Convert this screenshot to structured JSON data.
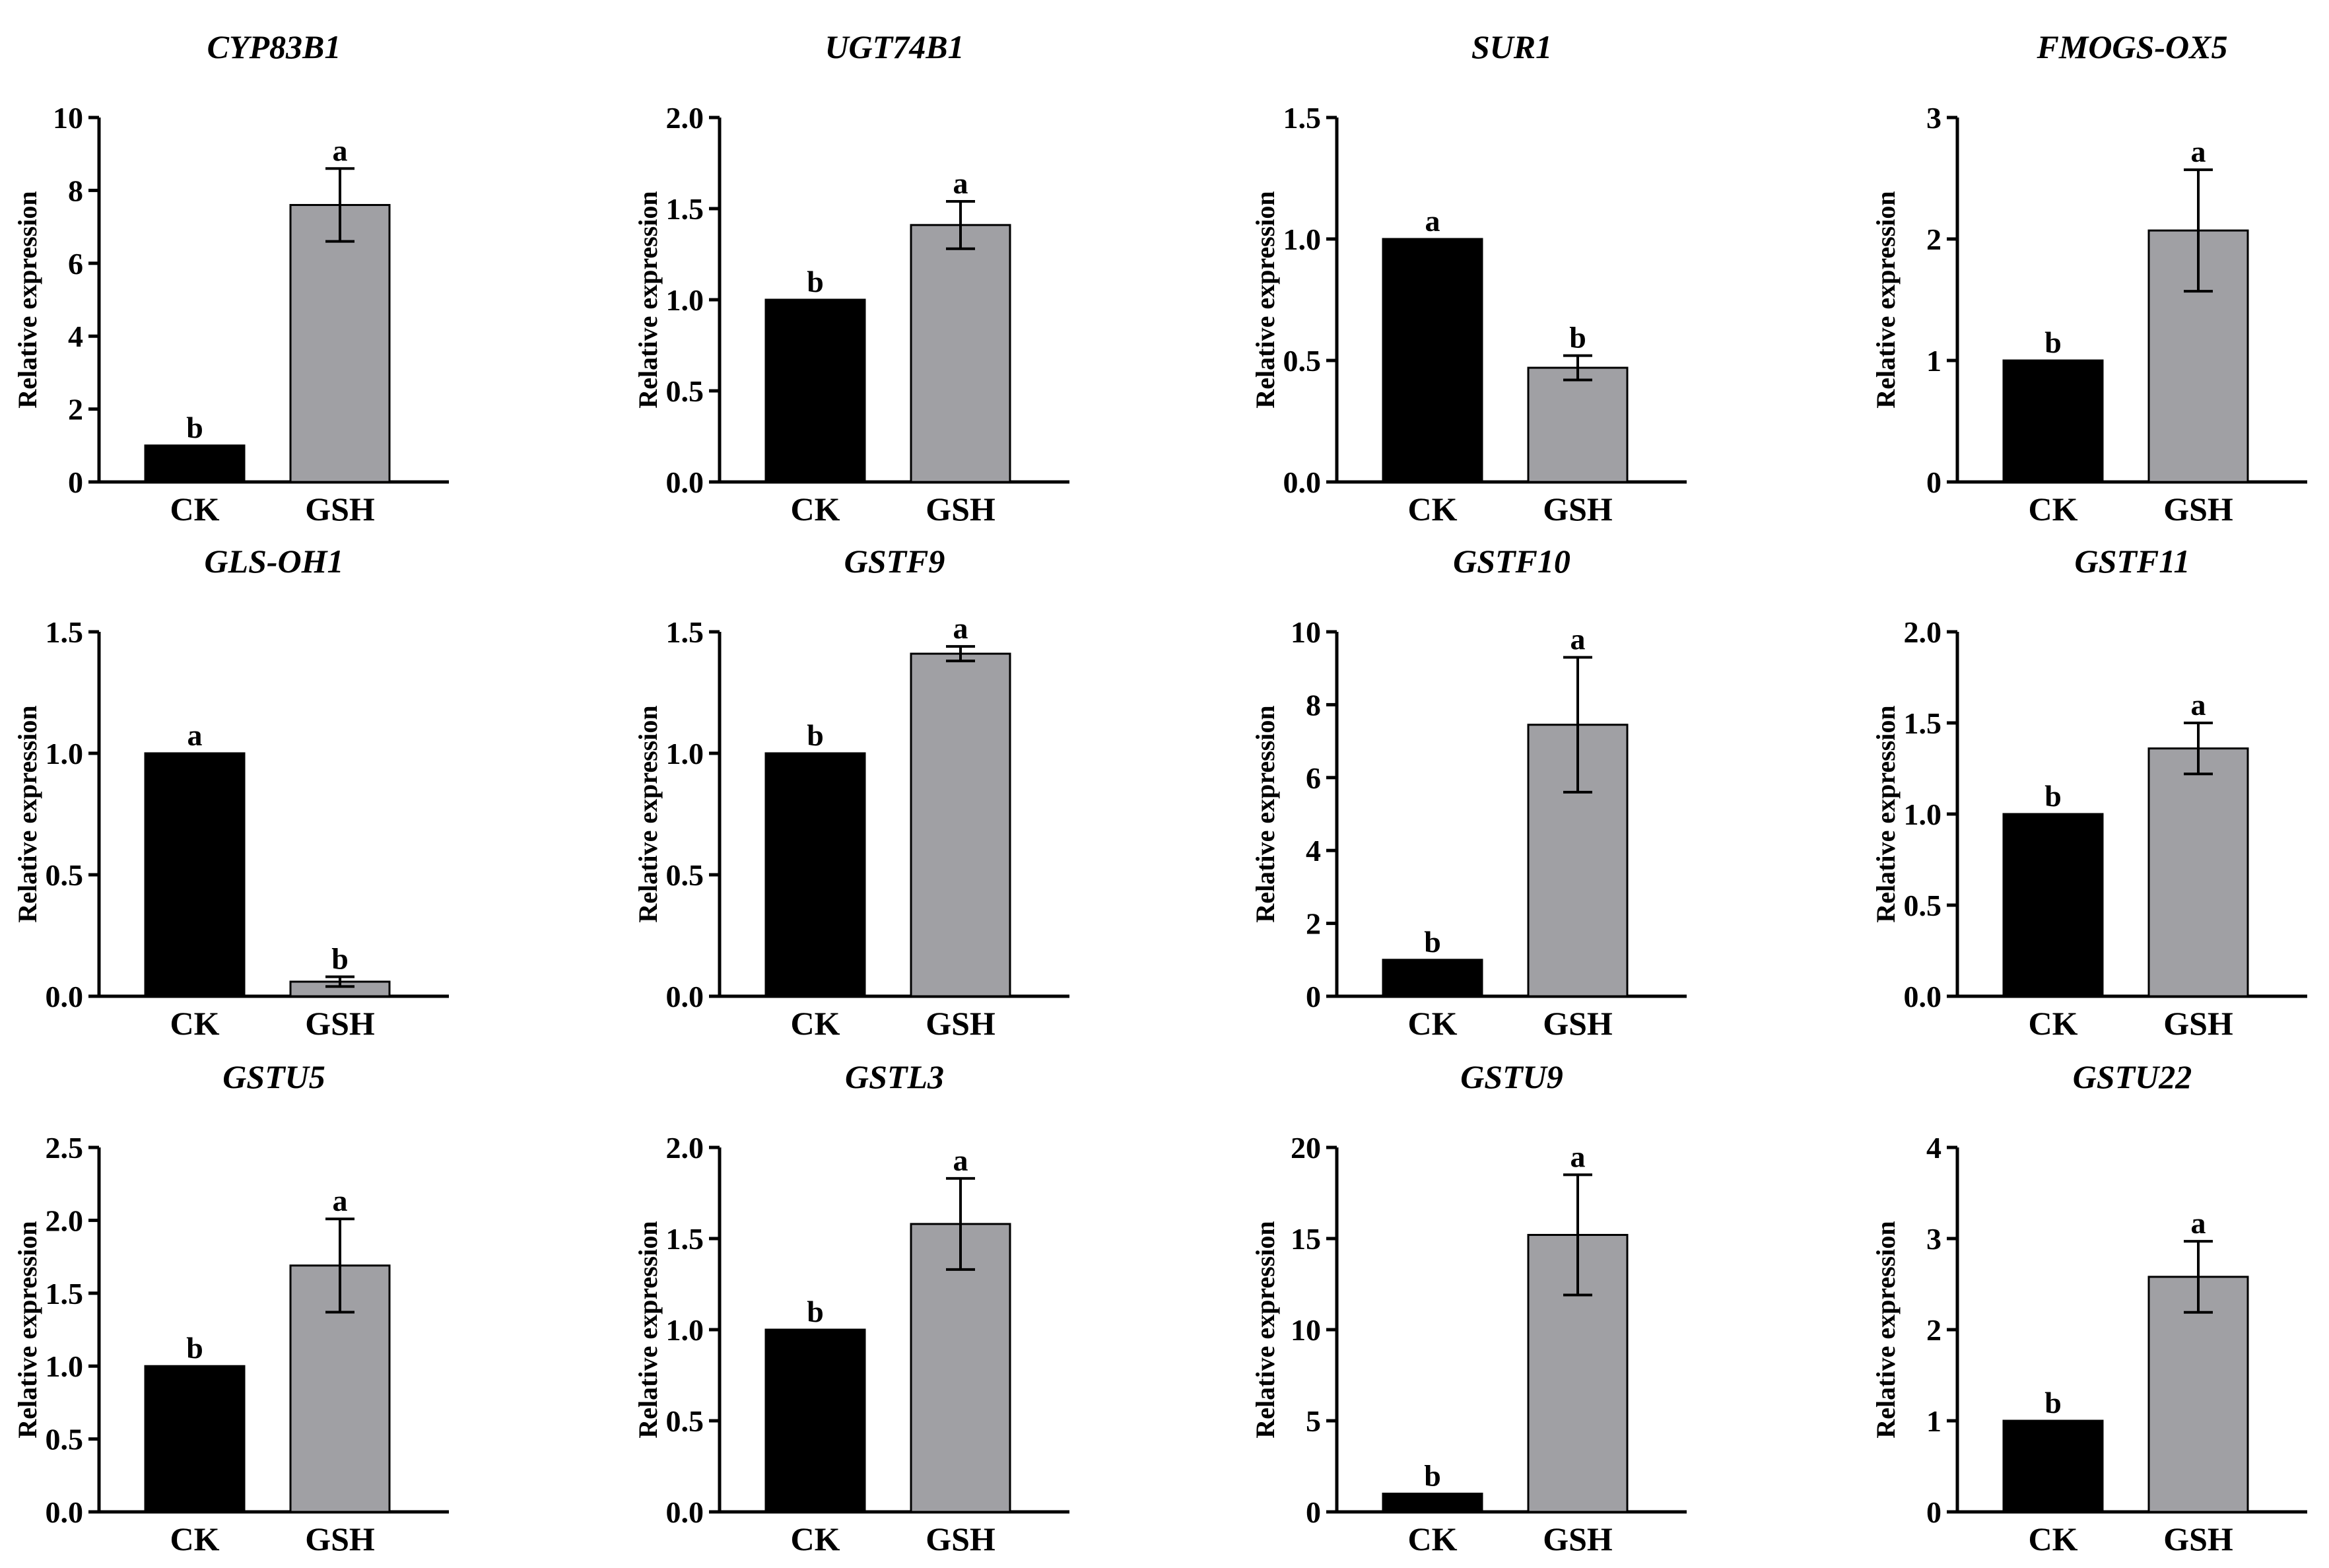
{
  "figure": {
    "colors": {
      "CK": "#000000",
      "GSH": "#a0a0a4",
      "axis": "#000000"
    }
  },
  "chart_data": [
    {
      "type": "bar",
      "title": "CYP83B1",
      "ylabel": "Relative expression",
      "xlabel": "",
      "categories": [
        "CK",
        "GSH"
      ],
      "values": [
        1.0,
        7.6
      ],
      "errors": [
        0,
        1.0
      ],
      "significance": [
        "b",
        "a"
      ],
      "ylim": [
        0,
        10
      ],
      "yticks": [
        0,
        2,
        4,
        6,
        8,
        10
      ],
      "ytick_labels": [
        "0",
        "2",
        "4",
        "6",
        "8",
        "10"
      ]
    },
    {
      "type": "bar",
      "title": "UGT74B1",
      "ylabel": "Relative expression",
      "xlabel": "",
      "categories": [
        "CK",
        "GSH"
      ],
      "values": [
        1.0,
        1.41
      ],
      "errors": [
        0,
        0.13
      ],
      "significance": [
        "b",
        "a"
      ],
      "ylim": [
        0,
        2.0
      ],
      "yticks": [
        0,
        0.5,
        1.0,
        1.5,
        2.0
      ],
      "ytick_labels": [
        "0.0",
        "0.5",
        "1.0",
        "1.5",
        "2.0"
      ]
    },
    {
      "type": "bar",
      "title": "SUR1",
      "ylabel": "Relative expression",
      "xlabel": "",
      "categories": [
        "CK",
        "GSH"
      ],
      "values": [
        1.0,
        0.47
      ],
      "errors": [
        0,
        0.05
      ],
      "significance": [
        "a",
        "b"
      ],
      "ylim": [
        0,
        1.5
      ],
      "yticks": [
        0,
        0.5,
        1.0,
        1.5
      ],
      "ytick_labels": [
        "0.0",
        "0.5",
        "1.0",
        "1.5"
      ]
    },
    {
      "type": "bar",
      "title": "FMOGS-OX5",
      "ylabel": "Relative expression",
      "xlabel": "",
      "categories": [
        "CK",
        "GSH"
      ],
      "values": [
        1.0,
        2.07
      ],
      "errors": [
        0,
        0.5
      ],
      "significance": [
        "b",
        "a"
      ],
      "ylim": [
        0,
        3
      ],
      "yticks": [
        0,
        1,
        2,
        3
      ],
      "ytick_labels": [
        "0",
        "1",
        "2",
        "3"
      ]
    },
    {
      "type": "bar",
      "title": "GLS-OH1",
      "ylabel": "Relative expression",
      "xlabel": "",
      "categories": [
        "CK",
        "GSH"
      ],
      "values": [
        1.0,
        0.06
      ],
      "errors": [
        0,
        0.02
      ],
      "significance": [
        "a",
        "b"
      ],
      "ylim": [
        0,
        1.5
      ],
      "yticks": [
        0,
        0.5,
        1.0,
        1.5
      ],
      "ytick_labels": [
        "0.0",
        "0.5",
        "1.0",
        "1.5"
      ]
    },
    {
      "type": "bar",
      "title": "GSTF9",
      "ylabel": "Relative expression",
      "xlabel": "",
      "categories": [
        "CK",
        "GSH"
      ],
      "values": [
        1.0,
        1.41
      ],
      "errors": [
        0,
        0.03
      ],
      "significance": [
        "b",
        "a"
      ],
      "ylim": [
        0,
        1.5
      ],
      "yticks": [
        0,
        0.5,
        1.0,
        1.5
      ],
      "ytick_labels": [
        "0.0",
        "0.5",
        "1.0",
        "1.5"
      ]
    },
    {
      "type": "bar",
      "title": "GSTF10",
      "ylabel": "Relative expression",
      "xlabel": "",
      "categories": [
        "CK",
        "GSH"
      ],
      "values": [
        1.0,
        7.45
      ],
      "errors": [
        0,
        1.85
      ],
      "significance": [
        "b",
        "a"
      ],
      "ylim": [
        0,
        10
      ],
      "yticks": [
        0,
        2,
        4,
        6,
        8,
        10
      ],
      "ytick_labels": [
        "0",
        "2",
        "4",
        "6",
        "8",
        "10"
      ]
    },
    {
      "type": "bar",
      "title": "GSTF11",
      "ylabel": "Relative expression",
      "xlabel": "",
      "categories": [
        "CK",
        "GSH"
      ],
      "values": [
        1.0,
        1.36
      ],
      "errors": [
        0,
        0.14
      ],
      "significance": [
        "b",
        "a"
      ],
      "ylim": [
        0,
        2.0
      ],
      "yticks": [
        0,
        0.5,
        1.0,
        1.5,
        2.0
      ],
      "ytick_labels": [
        "0.0",
        "0.5",
        "1.0",
        "1.5",
        "2.0"
      ]
    },
    {
      "type": "bar",
      "title": "GSTU5",
      "ylabel": "Relative expression",
      "xlabel": "",
      "categories": [
        "CK",
        "GSH"
      ],
      "values": [
        1.0,
        1.69
      ],
      "errors": [
        0,
        0.32
      ],
      "significance": [
        "b",
        "a"
      ],
      "ylim": [
        0,
        2.5
      ],
      "yticks": [
        0,
        0.5,
        1.0,
        1.5,
        2.0,
        2.5
      ],
      "ytick_labels": [
        "0.0",
        "0.5",
        "1.0",
        "1.5",
        "2.0",
        "2.5"
      ]
    },
    {
      "type": "bar",
      "title": "GSTL3",
      "ylabel": "Relative expression",
      "xlabel": "",
      "categories": [
        "CK",
        "GSH"
      ],
      "values": [
        1.0,
        1.58
      ],
      "errors": [
        0,
        0.25
      ],
      "significance": [
        "b",
        "a"
      ],
      "ylim": [
        0,
        2.0
      ],
      "yticks": [
        0,
        0.5,
        1.0,
        1.5,
        2.0
      ],
      "ytick_labels": [
        "0.0",
        "0.5",
        "1.0",
        "1.5",
        "2.0"
      ]
    },
    {
      "type": "bar",
      "title": "GSTU9",
      "ylabel": "Relative expression",
      "xlabel": "",
      "categories": [
        "CK",
        "GSH"
      ],
      "values": [
        1.0,
        15.2
      ],
      "errors": [
        0,
        3.3
      ],
      "significance": [
        "b",
        "a"
      ],
      "ylim": [
        0,
        20
      ],
      "yticks": [
        0,
        5,
        10,
        15,
        20
      ],
      "ytick_labels": [
        "0",
        "5",
        "10",
        "15",
        "20"
      ]
    },
    {
      "type": "bar",
      "title": "GSTU22",
      "ylabel": "Relative expression",
      "xlabel": "",
      "categories": [
        "CK",
        "GSH"
      ],
      "values": [
        1.0,
        2.58
      ],
      "errors": [
        0,
        0.39
      ],
      "significance": [
        "b",
        "a"
      ],
      "ylim": [
        0,
        4
      ],
      "yticks": [
        0,
        1,
        2,
        3,
        4
      ],
      "ytick_labels": [
        "0",
        "1",
        "2",
        "3",
        "4"
      ]
    }
  ]
}
